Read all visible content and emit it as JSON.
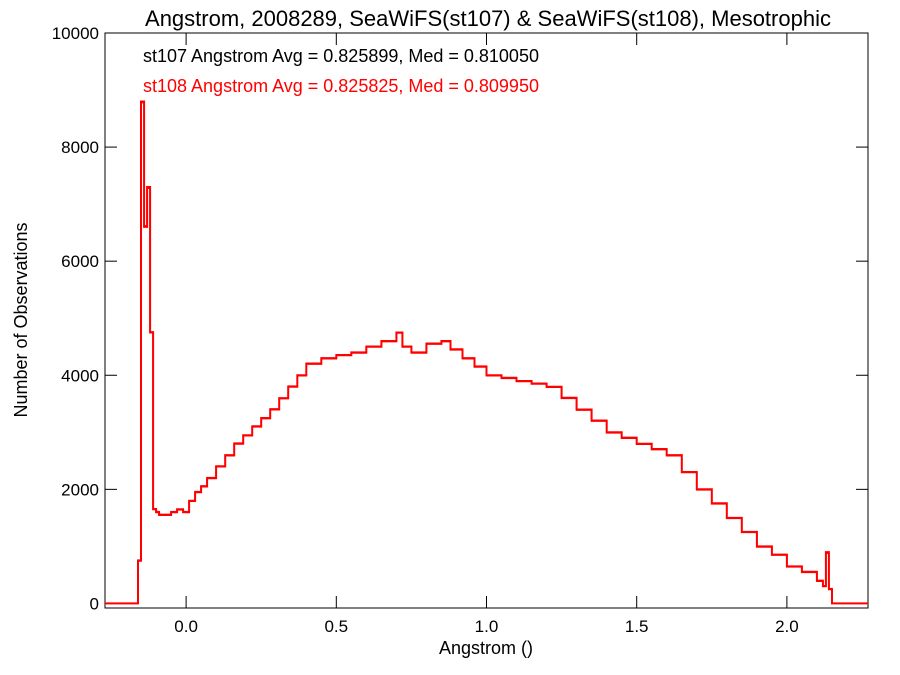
{
  "chart_data": {
    "type": "line",
    "title": "Angstrom, 2008289, SeaWiFS(st107) & SeaWiFS(st108), Mesotrophic",
    "xlabel": "Angstrom ()",
    "ylabel": "Number of Observations",
    "xlim": [
      -0.27,
      2.27
    ],
    "ylim": [
      -80,
      10000
    ],
    "x_ticks": [
      0.0,
      0.5,
      1.0,
      1.5,
      2.0
    ],
    "x_tick_labels": [
      "0.0",
      "0.5",
      "1.0",
      "1.5",
      "2.0"
    ],
    "y_ticks": [
      0,
      2000,
      4000,
      6000,
      8000,
      10000
    ],
    "y_tick_labels": [
      "0",
      "2000",
      "4000",
      "6000",
      "8000",
      "10000"
    ],
    "grid": false,
    "annotations": [
      {
        "text": "st107 Angstrom Avg = 0.825899, Med = 0.810050",
        "color": "#000000"
      },
      {
        "text": "st108 Angstrom Avg = 0.825825, Med = 0.809950",
        "color": "#ff0000"
      }
    ],
    "series": [
      {
        "color": "#ff0000",
        "x": [
          -0.27,
          -0.16,
          -0.15,
          -0.14,
          -0.13,
          -0.12,
          -0.11,
          -0.1,
          -0.09,
          -0.07,
          -0.05,
          -0.03,
          -0.01,
          0.01,
          0.03,
          0.05,
          0.07,
          0.1,
          0.13,
          0.16,
          0.19,
          0.22,
          0.25,
          0.28,
          0.31,
          0.34,
          0.37,
          0.4,
          0.45,
          0.5,
          0.55,
          0.6,
          0.65,
          0.7,
          0.72,
          0.75,
          0.8,
          0.85,
          0.88,
          0.92,
          0.96,
          1.0,
          1.05,
          1.1,
          1.15,
          1.2,
          1.25,
          1.3,
          1.35,
          1.4,
          1.45,
          1.5,
          1.55,
          1.6,
          1.65,
          1.7,
          1.75,
          1.8,
          1.85,
          1.9,
          1.95,
          2.0,
          2.05,
          2.1,
          2.12,
          2.13,
          2.14,
          2.15,
          2.27
        ],
        "y": [
          0,
          750,
          8800,
          6600,
          7300,
          4750,
          1650,
          1600,
          1550,
          1550,
          1600,
          1650,
          1600,
          1800,
          1950,
          2050,
          2200,
          2400,
          2600,
          2800,
          2950,
          3100,
          3250,
          3400,
          3600,
          3800,
          4000,
          4200,
          4300,
          4350,
          4400,
          4500,
          4600,
          4750,
          4500,
          4400,
          4550,
          4600,
          4450,
          4300,
          4150,
          4000,
          3950,
          3900,
          3850,
          3800,
          3600,
          3400,
          3200,
          3000,
          2900,
          2800,
          2700,
          2600,
          2300,
          2000,
          1750,
          1500,
          1250,
          1000,
          850,
          650,
          550,
          400,
          300,
          900,
          250,
          0,
          0
        ]
      },
      {
        "color": "#ff0000",
        "x": [
          -0.27,
          -0.16,
          -0.15,
          -0.14,
          -0.13,
          -0.12,
          -0.11,
          -0.1,
          -0.09,
          -0.07,
          -0.05,
          -0.03,
          -0.01,
          0.01,
          0.03,
          0.05,
          0.07,
          0.1,
          0.13,
          0.16,
          0.19,
          0.22,
          0.25,
          0.28,
          0.31,
          0.34,
          0.37,
          0.4,
          0.45,
          0.5,
          0.55,
          0.6,
          0.65,
          0.7,
          0.72,
          0.75,
          0.8,
          0.85,
          0.88,
          0.92,
          0.96,
          1.0,
          1.05,
          1.1,
          1.15,
          1.2,
          1.25,
          1.3,
          1.35,
          1.4,
          1.45,
          1.5,
          1.55,
          1.6,
          1.65,
          1.7,
          1.75,
          1.8,
          1.85,
          1.9,
          1.95,
          2.0,
          2.05,
          2.1,
          2.12,
          2.13,
          2.14,
          2.15,
          2.27
        ],
        "y": [
          0,
          760,
          8780,
          6620,
          7280,
          4760,
          1660,
          1610,
          1560,
          1560,
          1610,
          1640,
          1610,
          1790,
          1960,
          2060,
          2190,
          2410,
          2590,
          2810,
          2940,
          3110,
          3240,
          3410,
          3590,
          3810,
          3990,
          4210,
          4290,
          4360,
          4390,
          4510,
          4590,
          4740,
          4510,
          4390,
          4560,
          4590,
          4460,
          4290,
          4160,
          3990,
          3960,
          3890,
          3860,
          3790,
          3610,
          3390,
          3210,
          2990,
          2910,
          2790,
          2710,
          2590,
          2310,
          1990,
          1760,
          1490,
          1260,
          990,
          860,
          640,
          560,
          390,
          310,
          880,
          260,
          0,
          0
        ]
      }
    ]
  }
}
